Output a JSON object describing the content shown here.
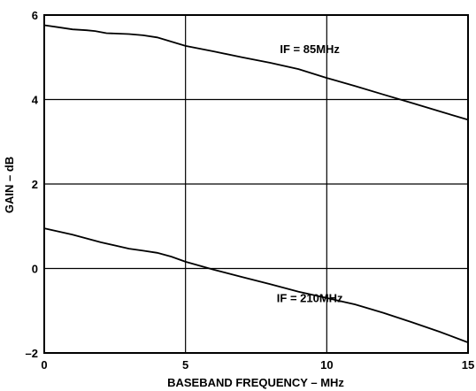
{
  "chart_data": {
    "type": "line",
    "xlabel": "BASEBAND FREQUENCY – MHz",
    "ylabel": "GAIN – dB",
    "xlim": [
      0,
      15
    ],
    "ylim": [
      -2,
      6
    ],
    "x_ticks": [
      "0",
      "5",
      "10",
      "15"
    ],
    "y_ticks": [
      "–2",
      "0",
      "2",
      "4",
      "6"
    ],
    "grid": true,
    "series": [
      {
        "name": "IF = 85MHz",
        "x": [
          0,
          0.5,
          1,
          1.5,
          1.8,
          2.2,
          3,
          3.5,
          4,
          5,
          6,
          7,
          8,
          9,
          10,
          11,
          12,
          13,
          14,
          15
        ],
        "y": [
          5.76,
          5.71,
          5.66,
          5.64,
          5.62,
          5.57,
          5.55,
          5.52,
          5.47,
          5.27,
          5.14,
          5.0,
          4.87,
          4.72,
          4.51,
          4.32,
          4.12,
          3.92,
          3.72,
          3.52
        ]
      },
      {
        "name": "IF = 210MHz",
        "x": [
          0,
          1,
          2,
          3,
          3.5,
          4,
          4.5,
          5,
          6,
          7,
          8,
          9,
          10,
          11,
          12,
          13,
          14,
          15
        ],
        "y": [
          0.95,
          0.8,
          0.62,
          0.47,
          0.42,
          0.37,
          0.28,
          0.16,
          -0.03,
          -0.2,
          -0.37,
          -0.55,
          -0.7,
          -0.85,
          -1.05,
          -1.27,
          -1.5,
          -1.75
        ]
      }
    ],
    "annotations": [
      {
        "text": "IF = 85MHz",
        "x": 9.4,
        "y": 5.1
      },
      {
        "text": "IF = 210MHz",
        "x": 9.4,
        "y": -0.8
      }
    ]
  }
}
